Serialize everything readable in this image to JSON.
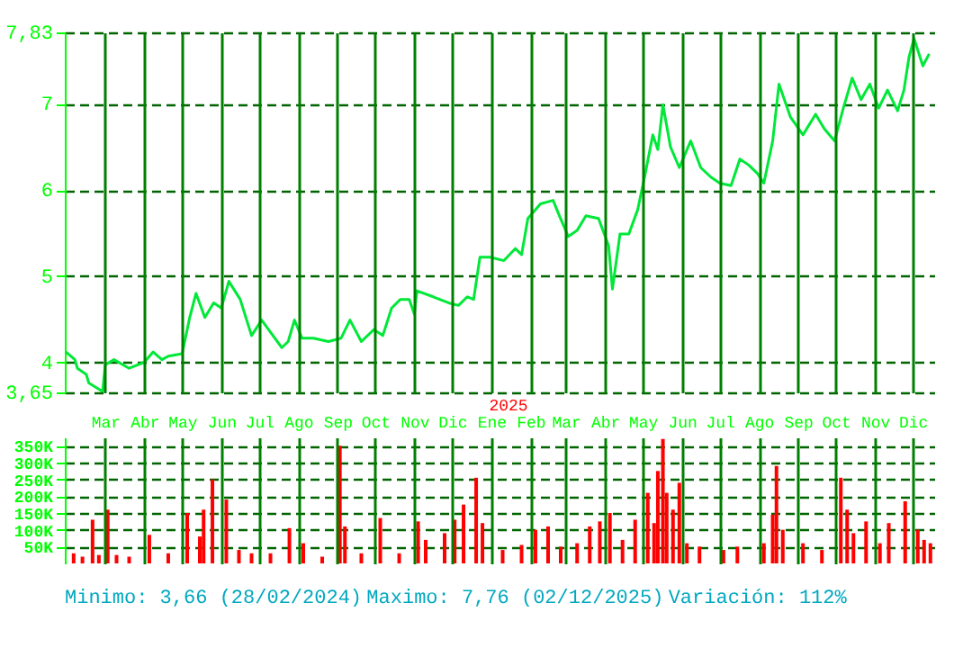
{
  "chart_data": [
    {
      "type": "line",
      "color": "#00e838",
      "x": [
        "2024-01-30",
        "2024-02-06",
        "2024-02-08",
        "2024-02-15",
        "2024-02-17",
        "2024-02-28",
        "2024-03-01",
        "2024-03-08",
        "2024-03-20",
        "2024-04-01",
        "2024-04-08",
        "2024-04-15",
        "2024-04-20",
        "2024-05-01",
        "2024-05-07",
        "2024-05-12",
        "2024-05-19",
        "2024-05-26",
        "2024-06-01",
        "2024-06-07",
        "2024-06-16",
        "2024-06-25",
        "2024-07-03",
        "2024-07-10",
        "2024-07-19",
        "2024-07-24",
        "2024-07-29",
        "2024-08-04",
        "2024-08-13",
        "2024-08-25",
        "2024-09-04",
        "2024-09-11",
        "2024-09-20",
        "2024-09-30",
        "2024-10-07",
        "2024-10-14",
        "2024-10-21",
        "2024-10-28",
        "2024-11-01",
        "2024-11-03",
        "2024-11-16",
        "2024-11-28",
        "2024-12-06",
        "2024-12-13",
        "2024-12-18",
        "2024-12-23",
        "2024-12-31",
        "2025-01-11",
        "2025-01-20",
        "2025-01-25",
        "2025-01-30",
        "2025-02-09",
        "2025-02-19",
        "2025-02-24",
        "2025-03-03",
        "2025-03-10",
        "2025-03-17",
        "2025-03-27",
        "2025-04-04",
        "2025-04-07",
        "2025-04-13",
        "2025-04-20",
        "2025-04-27",
        "2025-05-03",
        "2025-05-09",
        "2025-05-13",
        "2025-05-17",
        "2025-05-23",
        "2025-05-30",
        "2025-06-08",
        "2025-06-16",
        "2025-06-24",
        "2025-07-01",
        "2025-07-10",
        "2025-07-17",
        "2025-07-24",
        "2025-07-31",
        "2025-08-05",
        "2025-08-12",
        "2025-08-17",
        "2025-08-26",
        "2025-09-05",
        "2025-09-15",
        "2025-09-22",
        "2025-09-30",
        "2025-10-07",
        "2025-10-14",
        "2025-10-21",
        "2025-10-28",
        "2025-11-04",
        "2025-11-11",
        "2025-11-19",
        "2025-11-24",
        "2025-11-28",
        "2025-12-02",
        "2025-12-09",
        "2025-12-14"
      ],
      "values": [
        4.12,
        4.03,
        3.93,
        3.86,
        3.76,
        3.66,
        3.97,
        4.03,
        3.93,
        4.0,
        4.12,
        4.03,
        4.07,
        4.1,
        4.52,
        4.8,
        4.52,
        4.69,
        4.63,
        4.94,
        4.73,
        4.31,
        4.49,
        4.35,
        4.17,
        4.24,
        4.49,
        4.28,
        4.28,
        4.24,
        4.28,
        4.49,
        4.24,
        4.38,
        4.31,
        4.63,
        4.73,
        4.73,
        4.56,
        4.83,
        4.76,
        4.69,
        4.66,
        4.76,
        4.73,
        5.22,
        5.22,
        5.18,
        5.32,
        5.25,
        5.67,
        5.84,
        5.88,
        5.7,
        5.46,
        5.53,
        5.7,
        5.67,
        5.35,
        4.85,
        5.49,
        5.49,
        5.77,
        6.19,
        6.64,
        6.47,
        6.99,
        6.5,
        6.26,
        6.57,
        6.26,
        6.15,
        6.08,
        6.05,
        6.36,
        6.29,
        6.19,
        6.08,
        6.57,
        7.23,
        6.85,
        6.64,
        6.88,
        6.71,
        6.57,
        6.95,
        7.3,
        7.05,
        7.23,
        6.95,
        7.16,
        6.92,
        7.16,
        7.54,
        7.76,
        7.44,
        7.58
      ],
      "xlim": [
        "2024-01-29",
        "2025-12-18"
      ],
      "xticks": [
        {
          "value": "2024-03-01",
          "label": "Mar"
        },
        {
          "value": "2024-04-01",
          "label": "Abr"
        },
        {
          "value": "2024-05-01",
          "label": "May"
        },
        {
          "value": "2024-06-01",
          "label": "Jun"
        },
        {
          "value": "2024-07-01",
          "label": "Jul"
        },
        {
          "value": "2024-08-01",
          "label": "Ago"
        },
        {
          "value": "2024-09-01",
          "label": "Sep"
        },
        {
          "value": "2024-10-01",
          "label": "Oct"
        },
        {
          "value": "2024-11-01",
          "label": "Nov"
        },
        {
          "value": "2024-12-01",
          "label": "Dic"
        },
        {
          "value": "2025-01-01",
          "label": "Ene"
        },
        {
          "value": "2025-02-01",
          "label": "Feb"
        },
        {
          "value": "2025-03-01",
          "label": "Mar"
        },
        {
          "value": "2025-04-01",
          "label": "Abr"
        },
        {
          "value": "2025-05-01",
          "label": "May"
        },
        {
          "value": "2025-06-01",
          "label": "Jun"
        },
        {
          "value": "2025-07-01",
          "label": "Jul"
        },
        {
          "value": "2025-08-01",
          "label": "Ago"
        },
        {
          "value": "2025-09-01",
          "label": "Sep"
        },
        {
          "value": "2025-10-01",
          "label": "Oct"
        },
        {
          "value": "2025-11-01",
          "label": "Nov"
        },
        {
          "value": "2025-12-01",
          "label": "Dic"
        }
      ],
      "ylim": [
        3.65,
        7.83
      ],
      "yticks": [
        {
          "value": 3.65,
          "label": "3,65"
        },
        4,
        5,
        6,
        7,
        {
          "value": 7.83,
          "label": "7,83"
        }
      ],
      "grid": true,
      "annotations": [
        "2025"
      ]
    },
    {
      "type": "bar",
      "color": "#ff0000",
      "x": [
        "2024-02-05",
        "2024-02-12",
        "2024-02-20",
        "2024-02-25",
        "2024-03-03",
        "2024-03-10",
        "2024-03-20",
        "2024-04-05",
        "2024-04-20",
        "2024-05-05",
        "2024-05-15",
        "2024-05-18",
        "2024-05-25",
        "2024-06-05",
        "2024-06-15",
        "2024-06-25",
        "2024-07-10",
        "2024-07-25",
        "2024-08-05",
        "2024-08-20",
        "2024-09-03",
        "2024-09-07",
        "2024-09-20",
        "2024-10-05",
        "2024-10-20",
        "2024-11-04",
        "2024-11-10",
        "2024-11-25",
        "2024-12-03",
        "2024-12-10",
        "2024-12-20",
        "2024-12-25",
        "2025-01-10",
        "2025-01-25",
        "2025-02-05",
        "2025-02-15",
        "2025-02-25",
        "2025-03-10",
        "2025-03-20",
        "2025-03-28",
        "2025-04-05",
        "2025-04-15",
        "2025-04-25",
        "2025-05-05",
        "2025-05-10",
        "2025-05-13",
        "2025-05-17",
        "2025-05-20",
        "2025-05-25",
        "2025-05-30",
        "2025-06-05",
        "2025-06-15",
        "2025-07-04",
        "2025-07-15",
        "2025-08-05",
        "2025-08-12",
        "2025-08-15",
        "2025-08-20",
        "2025-09-05",
        "2025-09-20",
        "2025-10-05",
        "2025-10-10",
        "2025-10-15",
        "2025-10-25",
        "2025-11-05",
        "2025-11-12",
        "2025-11-25",
        "2025-12-05",
        "2025-12-10",
        "2025-12-15"
      ],
      "values": [
        30,
        20,
        130,
        25,
        160,
        25,
        20,
        85,
        30,
        150,
        80,
        160,
        250,
        190,
        40,
        30,
        30,
        105,
        60,
        20,
        350,
        110,
        30,
        135,
        30,
        125,
        70,
        90,
        130,
        175,
        255,
        120,
        40,
        55,
        100,
        110,
        50,
        60,
        110,
        125,
        150,
        70,
        130,
        210,
        120,
        275,
        370,
        210,
        160,
        240,
        60,
        50,
        40,
        50,
        60,
        145,
        290,
        100,
        60,
        40,
        255,
        160,
        90,
        125,
        60,
        120,
        185,
        100,
        70,
        60
      ],
      "xlim": [
        "2024-01-29",
        "2025-12-18"
      ],
      "xticks": [
        {
          "value": "2024-03-01",
          "label": null
        },
        {
          "value": "2024-04-01",
          "label": null
        },
        {
          "value": "2024-05-01",
          "label": null
        },
        {
          "value": "2024-06-01",
          "label": null
        },
        {
          "value": "2024-07-01",
          "label": null
        },
        {
          "value": "2024-08-01",
          "label": null
        },
        {
          "value": "2024-09-01",
          "label": null
        },
        {
          "value": "2024-10-01",
          "label": null
        },
        {
          "value": "2024-11-01",
          "label": null
        },
        {
          "value": "2024-12-01",
          "label": null
        },
        {
          "value": "2025-01-01",
          "label": null
        },
        {
          "value": "2025-02-01",
          "label": null
        },
        {
          "value": "2025-03-01",
          "label": null
        },
        {
          "value": "2025-04-01",
          "label": null
        },
        {
          "value": "2025-05-01",
          "label": null
        },
        {
          "value": "2025-06-01",
          "label": null
        },
        {
          "value": "2025-07-01",
          "label": null
        },
        {
          "value": "2025-08-01",
          "label": null
        },
        {
          "value": "2025-09-01",
          "label": null
        },
        {
          "value": "2025-10-01",
          "label": null
        },
        {
          "value": "2025-11-01",
          "label": null
        },
        {
          "value": "2025-12-01",
          "label": null
        }
      ],
      "ylim": [
        0,
        375
      ],
      "yticks": [
        {
          "value": 50,
          "label": "50K"
        },
        {
          "value": 100,
          "label": "100K"
        },
        {
          "value": 150,
          "label": "150K"
        },
        {
          "value": 200,
          "label": "200K"
        },
        {
          "value": 250,
          "label": "250K"
        },
        {
          "value": 300,
          "label": "300K"
        },
        {
          "value": 350,
          "label": "350K"
        }
      ],
      "grid": true,
      "tick_labels": "y",
      "annotations": [
        "Minimo: 3,66 (28/02/2024)",
        "Maximo: 7,76 (02/12/2025)",
        "Variación: 112%"
      ]
    }
  ]
}
